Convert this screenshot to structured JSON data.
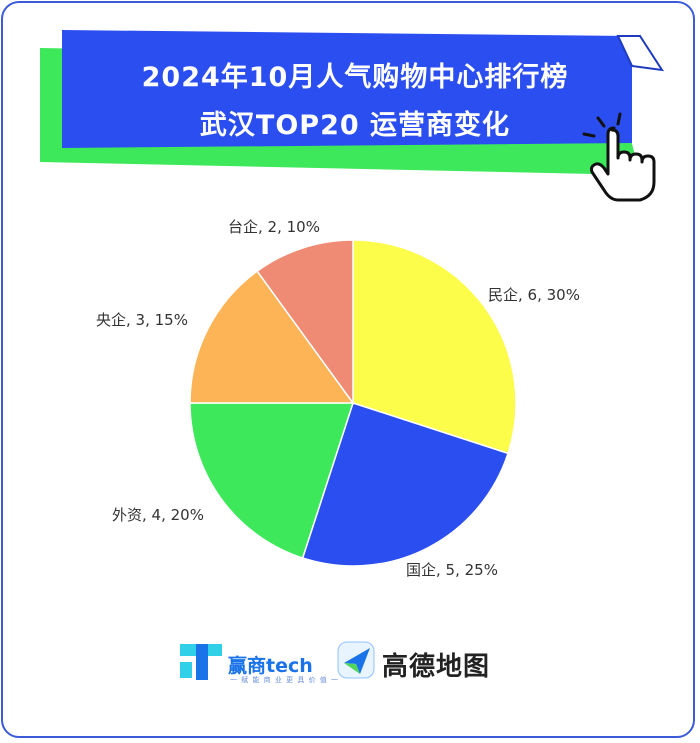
{
  "title": {
    "line1": "2024年10月人气购物中心排行榜",
    "line2": "武汉TOP20 运营商变化"
  },
  "chart_data": {
    "type": "pie",
    "title": "2024年10月人气购物中心排行榜 武汉TOP20 运营商变化",
    "slices": [
      {
        "name": "民企",
        "value": 6,
        "percent": 30,
        "label": "民企, 6, 30%",
        "color": "#fcfc4a"
      },
      {
        "name": "国企",
        "value": 5,
        "percent": 25,
        "label": "国企, 5, 25%",
        "color": "#2b4ef0"
      },
      {
        "name": "外资",
        "value": 4,
        "percent": 20,
        "label": "外资, 4, 20%",
        "color": "#3de85a"
      },
      {
        "name": "央企",
        "value": 3,
        "percent": 15,
        "label": "央企, 3, 15%",
        "color": "#fdb457"
      },
      {
        "name": "台企",
        "value": 2,
        "percent": 10,
        "label": "台企, 2, 10%",
        "color": "#ef8a74"
      }
    ],
    "legend": "none"
  },
  "logos": {
    "yingshang_name": "赢商tech",
    "yingshang_slogan": "一 赋 能 商 业 更 具 价 值 一",
    "amap_name": "高德地图"
  },
  "colors": {
    "banner_blue": "#2b4ef0",
    "banner_green": "#3de85a",
    "frame": "#3b5bdb"
  }
}
